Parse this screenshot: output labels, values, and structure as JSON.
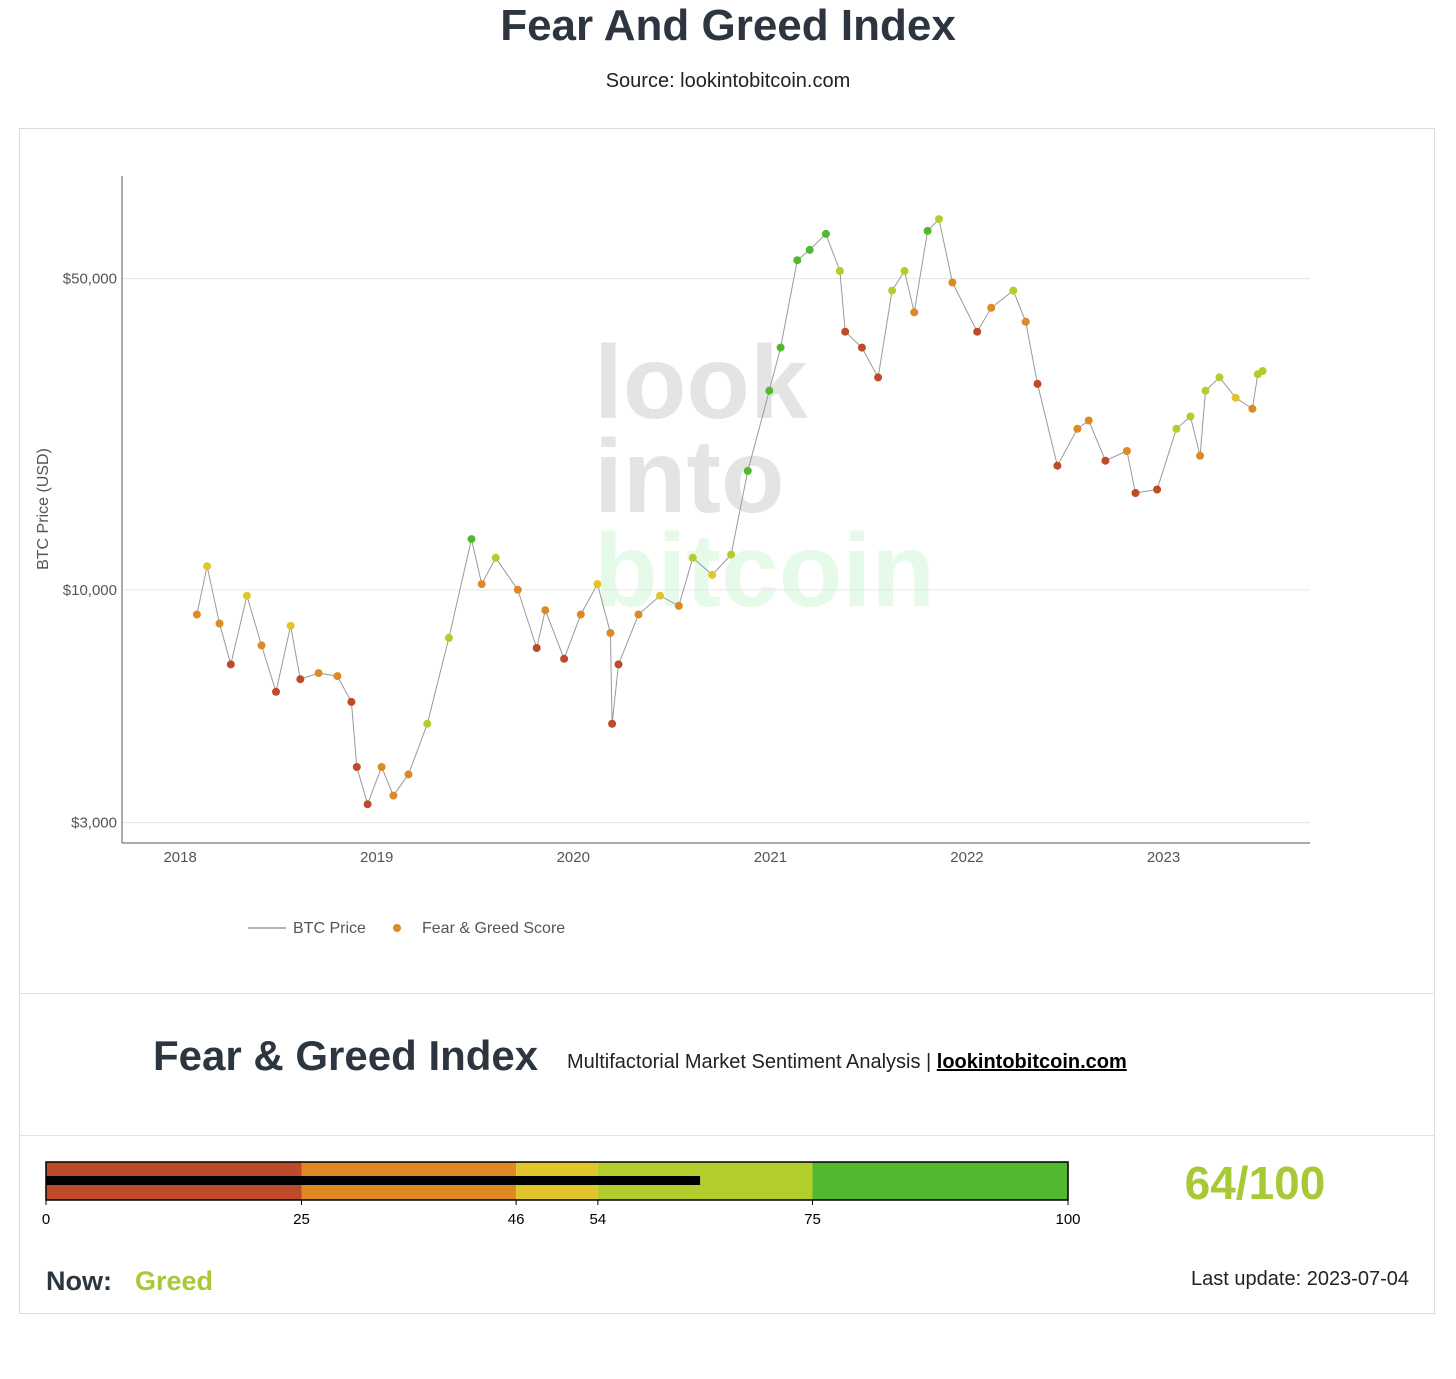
{
  "header": {
    "title": "Fear And Greed Index",
    "subtitle": "Source: lookintobitcoin.com"
  },
  "watermark": {
    "line1": "look",
    "line2": "into",
    "line3": "bitcoin"
  },
  "colors": {
    "extreme_fear": "#bd4a28",
    "fear": "#dd8a25",
    "neutral": "#e1c52a",
    "greed": "#b2cd2c",
    "extreme_greed": "#52b830",
    "price_line": "#9a9a9a",
    "score_text": "#a6c935"
  },
  "chart_data": {
    "type": "scatter",
    "ylabel": "BTC Price (USD)",
    "xlabel": "",
    "yscale": "log",
    "ylim": [
      2700,
      85000
    ],
    "xlim": [
      "2017-09-15",
      "2023-09-30"
    ],
    "yticks": [
      {
        "value": 3000,
        "label": "$3,000"
      },
      {
        "value": 10000,
        "label": "$10,000"
      },
      {
        "value": 50000,
        "label": "$50,000"
      }
    ],
    "xticks": [
      "2018",
      "2019",
      "2020",
      "2021",
      "2022",
      "2023"
    ],
    "legend": [
      "BTC Price",
      "Fear & Greed Score"
    ],
    "legend_position": "bottom-left",
    "grid": true,
    "series": [
      {
        "name": "BTC Price",
        "points": [
          [
            "2018-02-01",
            8800,
            28
          ],
          [
            "2018-02-20",
            11300,
            52
          ],
          [
            "2018-03-15",
            8400,
            32
          ],
          [
            "2018-04-05",
            6800,
            20
          ],
          [
            "2018-05-05",
            9700,
            50
          ],
          [
            "2018-06-01",
            7500,
            30
          ],
          [
            "2018-06-28",
            5900,
            18
          ],
          [
            "2018-07-25",
            8300,
            48
          ],
          [
            "2018-08-12",
            6300,
            22
          ],
          [
            "2018-09-15",
            6500,
            35
          ],
          [
            "2018-10-20",
            6400,
            38
          ],
          [
            "2018-11-15",
            5600,
            25
          ],
          [
            "2018-11-25",
            4000,
            12
          ],
          [
            "2018-12-15",
            3300,
            10
          ],
          [
            "2019-01-10",
            4000,
            30
          ],
          [
            "2019-02-01",
            3450,
            28
          ],
          [
            "2019-03-01",
            3850,
            45
          ],
          [
            "2019-04-05",
            5000,
            60
          ],
          [
            "2019-05-15",
            7800,
            70
          ],
          [
            "2019-06-26",
            13000,
            78
          ],
          [
            "2019-07-15",
            10300,
            45
          ],
          [
            "2019-08-10",
            11800,
            55
          ],
          [
            "2019-09-20",
            10000,
            40
          ],
          [
            "2019-10-25",
            7400,
            25
          ],
          [
            "2019-11-10",
            9000,
            45
          ],
          [
            "2019-12-15",
            7000,
            22
          ],
          [
            "2020-01-15",
            8800,
            40
          ],
          [
            "2020-02-15",
            10300,
            52
          ],
          [
            "2020-03-10",
            8000,
            28
          ],
          [
            "2020-03-13",
            5000,
            12
          ],
          [
            "2020-03-25",
            6800,
            20
          ],
          [
            "2020-05-01",
            8800,
            35
          ],
          [
            "2020-06-10",
            9700,
            48
          ],
          [
            "2020-07-15",
            9200,
            42
          ],
          [
            "2020-08-10",
            11800,
            72
          ],
          [
            "2020-09-15",
            10800,
            50
          ],
          [
            "2020-10-20",
            12000,
            60
          ],
          [
            "2020-11-20",
            18500,
            80
          ],
          [
            "2020-12-30",
            28000,
            90
          ],
          [
            "2021-01-20",
            35000,
            85
          ],
          [
            "2021-02-20",
            55000,
            88
          ],
          [
            "2021-03-15",
            58000,
            76
          ],
          [
            "2021-04-14",
            63000,
            80
          ],
          [
            "2021-05-10",
            52000,
            65
          ],
          [
            "2021-05-20",
            38000,
            20
          ],
          [
            "2021-06-20",
            35000,
            22
          ],
          [
            "2021-07-20",
            30000,
            18
          ],
          [
            "2021-08-15",
            47000,
            62
          ],
          [
            "2021-09-07",
            52000,
            72
          ],
          [
            "2021-09-25",
            42000,
            40
          ],
          [
            "2021-10-20",
            64000,
            78
          ],
          [
            "2021-11-10",
            68000,
            72
          ],
          [
            "2021-12-05",
            49000,
            30
          ],
          [
            "2022-01-20",
            38000,
            20
          ],
          [
            "2022-02-15",
            43000,
            38
          ],
          [
            "2022-03-28",
            47000,
            58
          ],
          [
            "2022-04-20",
            40000,
            30
          ],
          [
            "2022-05-12",
            29000,
            18
          ],
          [
            "2022-06-18",
            19000,
            10
          ],
          [
            "2022-07-25",
            23000,
            30
          ],
          [
            "2022-08-15",
            24000,
            42
          ],
          [
            "2022-09-15",
            19500,
            22
          ],
          [
            "2022-10-25",
            20500,
            35
          ],
          [
            "2022-11-10",
            16500,
            15
          ],
          [
            "2022-12-20",
            16800,
            25
          ],
          [
            "2023-01-25",
            23000,
            58
          ],
          [
            "2023-02-20",
            24500,
            55
          ],
          [
            "2023-03-10",
            20000,
            30
          ],
          [
            "2023-03-20",
            28000,
            62
          ],
          [
            "2023-04-15",
            30000,
            60
          ],
          [
            "2023-05-15",
            27000,
            48
          ],
          [
            "2023-06-15",
            25500,
            42
          ],
          [
            "2023-06-25",
            30500,
            62
          ],
          [
            "2023-07-04",
            31000,
            64
          ]
        ]
      }
    ]
  },
  "index_panel": {
    "title": "Fear & Greed Index",
    "subtitle": "Multifactorial Market Sentiment Analysis |",
    "link_text": "lookintobitcoin.com"
  },
  "gauge": {
    "score": 64,
    "max": 100,
    "score_text": "64/100",
    "zones": [
      {
        "from": 0,
        "to": 25,
        "color": "#bd4a28"
      },
      {
        "from": 25,
        "to": 46,
        "color": "#dd8a25"
      },
      {
        "from": 46,
        "to": 54,
        "color": "#e1c52a"
      },
      {
        "from": 54,
        "to": 75,
        "color": "#b2cd2c"
      },
      {
        "from": 75,
        "to": 100,
        "color": "#52b830"
      }
    ],
    "ticks": [
      "0",
      "25",
      "46",
      "54",
      "75",
      "100"
    ]
  },
  "status": {
    "now_label": "Now:",
    "now_value": "Greed",
    "last_update": "Last update: 2023-07-04"
  }
}
